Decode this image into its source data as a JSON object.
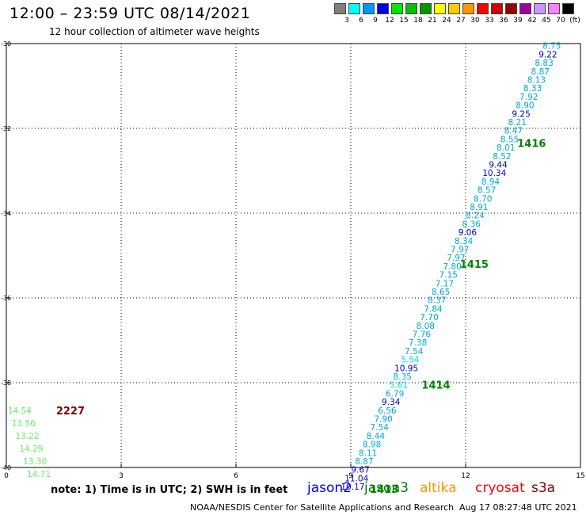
{
  "header": {
    "title": "12:00 – 23:59 UTC 08/14/2021",
    "subtitle": "12 hour collection of altimeter wave heights"
  },
  "legend": {
    "colors": [
      {
        "label": "3",
        "color": "#808080"
      },
      {
        "label": "6",
        "color": "#00ffff"
      },
      {
        "label": "9",
        "color": "#0096ff"
      },
      {
        "label": "12",
        "color": "#0000e6"
      },
      {
        "label": "15",
        "color": "#00e600"
      },
      {
        "label": "18",
        "color": "#00c000"
      },
      {
        "label": "21",
        "color": "#009600"
      },
      {
        "label": "24",
        "color": "#ffff00"
      },
      {
        "label": "27",
        "color": "#ffc800"
      },
      {
        "label": "30",
        "color": "#ff9600"
      },
      {
        "label": "33",
        "color": "#ff0000"
      },
      {
        "label": "36",
        "color": "#d20000"
      },
      {
        "label": "39",
        "color": "#960000"
      },
      {
        "label": "42",
        "color": "#a000a0"
      },
      {
        "label": "45",
        "color": "#c896ff"
      },
      {
        "label": "70",
        "color": "#ff80ff"
      },
      {
        "label": "(ft)",
        "color": "#000000"
      }
    ]
  },
  "chart_data": {
    "type": "scatter",
    "xlim": [
      0,
      15
    ],
    "ylim": [
      -40,
      -30
    ],
    "x_ticks": [
      "0",
      "3",
      "6",
      "9",
      "12",
      "15"
    ],
    "y_ticks": [
      "-30",
      "-32",
      "-34",
      "-36",
      "-38",
      "-40"
    ],
    "grid": true,
    "points": [
      {
        "x": 14.25,
        "y": -30.05,
        "text": "8.75",
        "color": "#00a8d8"
      },
      {
        "x": 14.15,
        "y": -30.25,
        "text": "9.22",
        "color": "#0000c8"
      },
      {
        "x": 14.05,
        "y": -30.45,
        "text": "8.83",
        "color": "#00a8d8"
      },
      {
        "x": 13.95,
        "y": -30.65,
        "text": "8.87",
        "color": "#00a8d8"
      },
      {
        "x": 13.85,
        "y": -30.85,
        "text": "8.13",
        "color": "#00a8d8"
      },
      {
        "x": 13.75,
        "y": -31.05,
        "text": "8.33",
        "color": "#00a8d8"
      },
      {
        "x": 13.65,
        "y": -31.25,
        "text": "7.92",
        "color": "#00a8d8"
      },
      {
        "x": 13.55,
        "y": -31.45,
        "text": "8.90",
        "color": "#00a8d8"
      },
      {
        "x": 13.45,
        "y": -31.65,
        "text": "9.25",
        "color": "#0000c8"
      },
      {
        "x": 13.35,
        "y": -31.85,
        "text": "8.21",
        "color": "#00a8d8"
      },
      {
        "x": 13.25,
        "y": -32.05,
        "text": "8.47",
        "color": "#00a8d8"
      },
      {
        "x": 13.15,
        "y": -32.25,
        "text": "8.55",
        "color": "#00a8d8"
      },
      {
        "x": 13.05,
        "y": -32.45,
        "text": "8.01",
        "color": "#00a8d8"
      },
      {
        "x": 12.95,
        "y": -32.65,
        "text": "8.52",
        "color": "#00a8d8"
      },
      {
        "x": 12.85,
        "y": -32.85,
        "text": "9.44",
        "color": "#0000c8"
      },
      {
        "x": 12.75,
        "y": -33.05,
        "text": "10.34",
        "color": "#0000c8"
      },
      {
        "x": 12.65,
        "y": -33.25,
        "text": "8.94",
        "color": "#00a8d8"
      },
      {
        "x": 12.55,
        "y": -33.45,
        "text": "8.57",
        "color": "#00a8d8"
      },
      {
        "x": 12.45,
        "y": -33.65,
        "text": "8.70",
        "color": "#00a8d8"
      },
      {
        "x": 12.35,
        "y": -33.85,
        "text": "8.91",
        "color": "#00a8d8"
      },
      {
        "x": 12.25,
        "y": -34.05,
        "text": "8.24",
        "color": "#00a8d8"
      },
      {
        "x": 12.15,
        "y": -34.25,
        "text": "8.36",
        "color": "#00a8d8"
      },
      {
        "x": 12.05,
        "y": -34.45,
        "text": "9.06",
        "color": "#0000c8"
      },
      {
        "x": 11.95,
        "y": -34.65,
        "text": "8.34",
        "color": "#00a8d8"
      },
      {
        "x": 11.85,
        "y": -34.85,
        "text": "7.97",
        "color": "#00a8d8"
      },
      {
        "x": 11.75,
        "y": -35.05,
        "text": "7.97",
        "color": "#00a8d8"
      },
      {
        "x": 11.65,
        "y": -35.25,
        "text": "7.80",
        "color": "#00a8d8"
      },
      {
        "x": 11.55,
        "y": -35.45,
        "text": "7.15",
        "color": "#00a8d8"
      },
      {
        "x": 11.45,
        "y": -35.65,
        "text": "7.17",
        "color": "#00a8d8"
      },
      {
        "x": 11.35,
        "y": -35.85,
        "text": "8.65",
        "color": "#00a8d8"
      },
      {
        "x": 11.25,
        "y": -36.05,
        "text": "8.37",
        "color": "#00a8d8"
      },
      {
        "x": 11.15,
        "y": -36.25,
        "text": "7.84",
        "color": "#00a8d8"
      },
      {
        "x": 11.05,
        "y": -36.45,
        "text": "7.70",
        "color": "#00a8d8"
      },
      {
        "x": 10.95,
        "y": -36.65,
        "text": "8.08",
        "color": "#00a8d8"
      },
      {
        "x": 10.85,
        "y": -36.85,
        "text": "7.76",
        "color": "#00a8d8"
      },
      {
        "x": 10.75,
        "y": -37.05,
        "text": "7.38",
        "color": "#00a8d8"
      },
      {
        "x": 10.65,
        "y": -37.25,
        "text": "7.54",
        "color": "#00a8d8"
      },
      {
        "x": 10.55,
        "y": -37.45,
        "text": "5.54",
        "color": "#00e0e0"
      },
      {
        "x": 10.45,
        "y": -37.65,
        "text": "10.95",
        "color": "#0000c8"
      },
      {
        "x": 10.35,
        "y": -37.85,
        "text": "8.35",
        "color": "#00a8d8"
      },
      {
        "x": 10.25,
        "y": -38.05,
        "text": "5.61",
        "color": "#00e0e0"
      },
      {
        "x": 10.15,
        "y": -38.25,
        "text": "6.79",
        "color": "#00a8d8"
      },
      {
        "x": 10.05,
        "y": -38.45,
        "text": "9.34",
        "color": "#0000c8"
      },
      {
        "x": 9.95,
        "y": -38.65,
        "text": "6.56",
        "color": "#00a8d8"
      },
      {
        "x": 9.85,
        "y": -38.85,
        "text": "7.90",
        "color": "#00a8d8"
      },
      {
        "x": 9.75,
        "y": -39.05,
        "text": "7.54",
        "color": "#00a8d8"
      },
      {
        "x": 9.65,
        "y": -39.25,
        "text": "8.44",
        "color": "#00a8d8"
      },
      {
        "x": 9.55,
        "y": -39.45,
        "text": "8.98",
        "color": "#00a8d8"
      },
      {
        "x": 9.45,
        "y": -39.65,
        "text": "8.11",
        "color": "#00a8d8"
      },
      {
        "x": 9.35,
        "y": -39.85,
        "text": "8.87",
        "color": "#00a8d8"
      },
      {
        "x": 9.25,
        "y": -40.05,
        "text": "9.67",
        "color": "#0000c8"
      },
      {
        "x": 9.15,
        "y": -40.25,
        "text": "11.04",
        "color": "#0000c8"
      },
      {
        "x": 9.05,
        "y": -40.45,
        "text": "10.17",
        "color": "#0000c8"
      },
      {
        "x": 0.35,
        "y": -38.65,
        "text": "14.54",
        "color": "#66ee66"
      },
      {
        "x": 0.45,
        "y": -38.95,
        "text": "13.56",
        "color": "#66ee66"
      },
      {
        "x": 0.55,
        "y": -39.25,
        "text": "13.22",
        "color": "#66ee66"
      },
      {
        "x": 0.65,
        "y": -39.55,
        "text": "14.29",
        "color": "#66ee66"
      },
      {
        "x": 0.75,
        "y": -39.85,
        "text": "13.30",
        "color": "#66ee66"
      },
      {
        "x": 0.85,
        "y": -40.15,
        "text": "14.71",
        "color": "#66ee66"
      }
    ],
    "annotations": [
      {
        "x": 13.35,
        "y": -32.35,
        "text": "1416",
        "color": "#008000"
      },
      {
        "x": 11.85,
        "y": -35.2,
        "text": "1415",
        "color": "#008000"
      },
      {
        "x": 10.85,
        "y": -38.05,
        "text": "1414",
        "color": "#008000"
      },
      {
        "x": 9.5,
        "y": -40.5,
        "text": "1413",
        "color": "#008000"
      },
      {
        "x": 1.3,
        "y": -38.65,
        "text": "2227",
        "color": "#800000"
      }
    ]
  },
  "footer_notes": {
    "note": "note: 1) Time is in UTC; 2) SWH is in feet",
    "satellites": [
      {
        "name": "jason2",
        "color": "#0000e6"
      },
      {
        "name": "jason3",
        "color": "#008000"
      },
      {
        "name": "altika",
        "color": "#ff9600"
      },
      {
        "name": "cryosat",
        "color": "#ff0000"
      },
      {
        "name": "s3a",
        "color": "#800000"
      }
    ],
    "credit": "NOAA/NESDIS Center for Satellite Applications and Research",
    "timestamp": "Aug 17 08:27:48 UTC 2021"
  }
}
